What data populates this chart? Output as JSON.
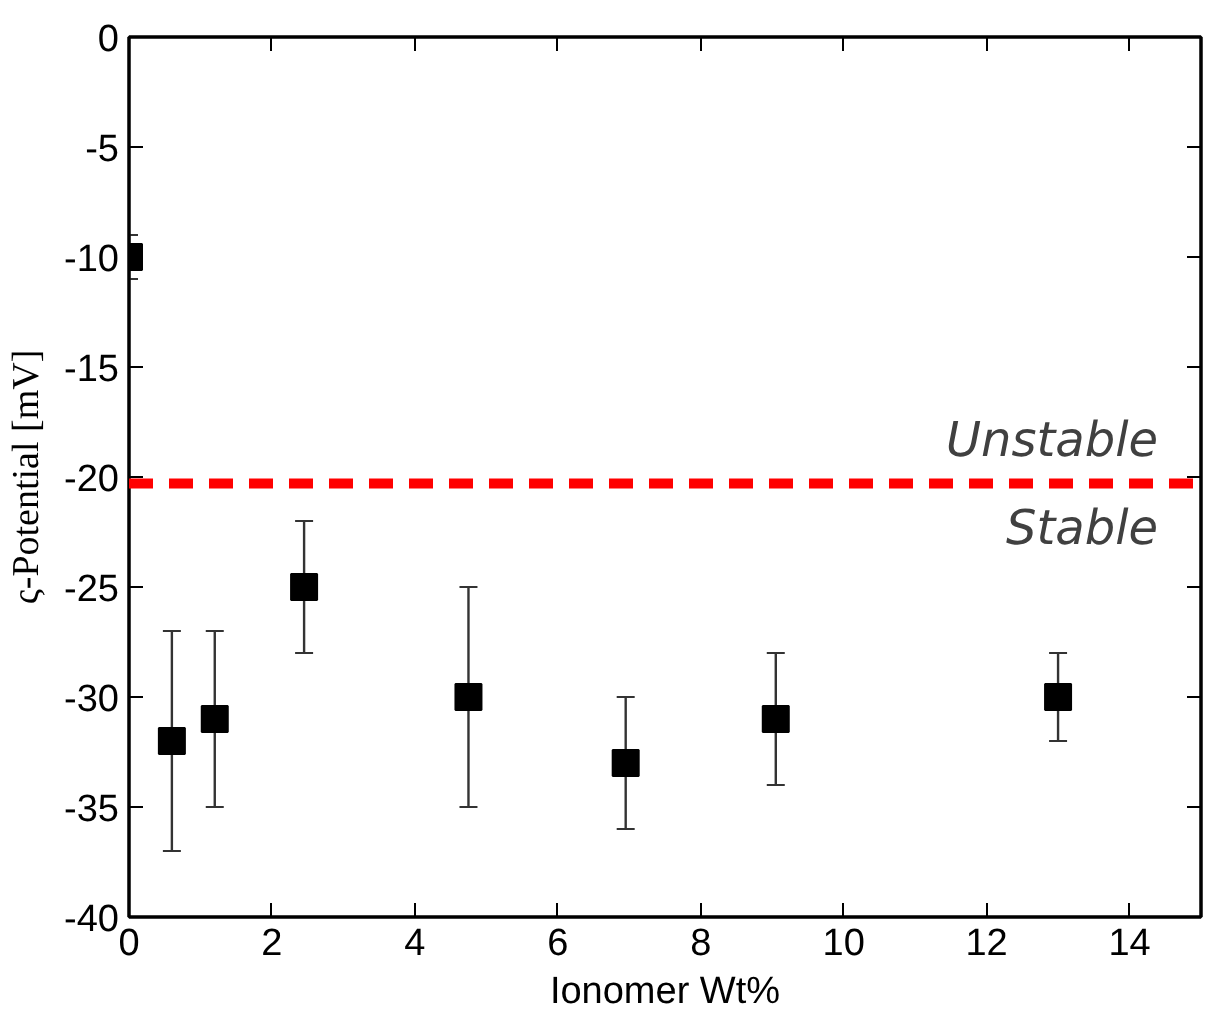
{
  "chart_data": {
    "type": "scatter",
    "xlabel": "Ionomer Wt%",
    "ylabel": "ς-Potential [mV]",
    "x": [
      0,
      0.6,
      1.2,
      2.45,
      4.75,
      6.95,
      9.05,
      13
    ],
    "series": [
      {
        "color": "#000000",
        "values": [
          -10,
          -32,
          -31,
          -25,
          -30,
          -33,
          -31,
          -30
        ],
        "errors": [
          [
            -11,
            -9
          ],
          [
            -37,
            -27
          ],
          [
            -35,
            -27
          ],
          [
            -28,
            -22
          ],
          [
            -35,
            -25
          ],
          [
            -36,
            -30
          ],
          [
            -34,
            -28
          ],
          [
            -32,
            -28
          ]
        ]
      }
    ],
    "marker": "square",
    "xlim": [
      0,
      15
    ],
    "ylim": [
      -40,
      0
    ],
    "xticks": [
      0,
      2,
      4,
      6,
      8,
      10,
      12,
      14
    ],
    "yticks": [
      -40,
      -35,
      -30,
      -25,
      -20,
      -15,
      -10,
      -5,
      0
    ],
    "ref_lines": [
      {
        "axis": "y",
        "value": -20.3,
        "color": "#ff0000",
        "line_style": "dashed"
      }
    ],
    "annotations": [
      "Unstable",
      "Stable"
    ],
    "grid": false
  }
}
